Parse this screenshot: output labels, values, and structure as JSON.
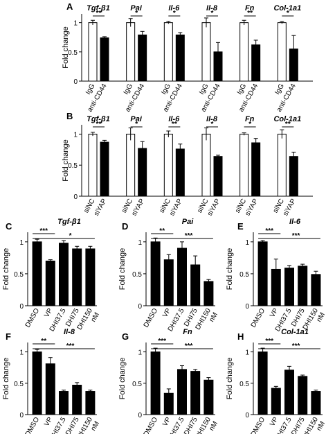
{
  "chart_data": [
    {
      "id": "A",
      "type": "bar",
      "ylabel": "Fold change",
      "yticks": [
        "0",
        "0.5",
        "1"
      ],
      "ylim": [
        0,
        1.15
      ],
      "groups": [
        {
          "gene": "Tgf-β1",
          "sig": "**",
          "labels": [
            "IgG",
            "anti-CD44"
          ],
          "values": [
            1.0,
            0.74
          ],
          "errors": [
            0.04,
            0.02
          ]
        },
        {
          "gene": "Pai",
          "sig": "*",
          "labels": [
            "IgG",
            "anti-CD44"
          ],
          "values": [
            1.0,
            0.79
          ],
          "errors": [
            0.07,
            0.06
          ]
        },
        {
          "gene": "Il-6",
          "sig": "*",
          "labels": [
            "IgG",
            "anti-CD44"
          ],
          "values": [
            1.0,
            0.79
          ],
          "errors": [
            0.02,
            0.04
          ]
        },
        {
          "gene": "Il-8",
          "sig": "*",
          "labels": [
            "IgG",
            "anti-CD44"
          ],
          "values": [
            1.0,
            0.5
          ],
          "errors": [
            0.08,
            0.16
          ]
        },
        {
          "gene": "Fn",
          "sig": "**",
          "labels": [
            "IgG",
            "anti-CD44"
          ],
          "values": [
            1.0,
            0.62
          ],
          "errors": [
            0.04,
            0.08
          ]
        },
        {
          "gene": "Col-1a1",
          "sig": "*",
          "labels": [
            "IgG",
            "anti-CD44"
          ],
          "values": [
            1.0,
            0.55
          ],
          "errors": [
            0.02,
            0.23
          ]
        }
      ]
    },
    {
      "id": "B",
      "type": "bar",
      "ylabel": "Fold change",
      "yticks": [
        "0",
        "0.5",
        "1"
      ],
      "ylim": [
        0,
        1.15
      ],
      "groups": [
        {
          "gene": "Tgf-β1",
          "sig": "**",
          "labels": [
            "siNC",
            "siYAP"
          ],
          "values": [
            1.0,
            0.87
          ],
          "errors": [
            0.03,
            0.03
          ]
        },
        {
          "gene": "Pai",
          "sig": "*",
          "labels": [
            "siNC",
            "siYAP"
          ],
          "values": [
            1.0,
            0.77
          ],
          "errors": [
            0.1,
            0.11
          ]
        },
        {
          "gene": "Il-6",
          "sig": "**",
          "labels": [
            "siNC",
            "siYAP"
          ],
          "values": [
            1.0,
            0.76
          ],
          "errors": [
            0.05,
            0.08
          ]
        },
        {
          "gene": "Il-8",
          "sig": "*",
          "labels": [
            "siNC",
            "siYAP"
          ],
          "values": [
            1.0,
            0.64
          ],
          "errors": [
            0.1,
            0.02
          ]
        },
        {
          "gene": "Fn",
          "sig": "*",
          "labels": [
            "siNC",
            "siYAP"
          ],
          "values": [
            1.0,
            0.86
          ],
          "errors": [
            0.02,
            0.07
          ]
        },
        {
          "gene": "Col-1a1",
          "sig": "**",
          "labels": [
            "siNC",
            "siYAP"
          ],
          "values": [
            1.0,
            0.64
          ],
          "errors": [
            0.07,
            0.07
          ]
        }
      ]
    },
    {
      "id": "C",
      "type": "bar",
      "gene": "Tgf-β1",
      "ylabel": "Fold change",
      "yticks": [
        "0",
        "0.5",
        "1"
      ],
      "ylim": [
        0,
        1.15
      ],
      "categories": [
        "DMSO",
        "VP",
        "DHI37.5",
        "DHI75",
        "DHI150"
      ],
      "unit": "nM",
      "values": [
        1.0,
        0.7,
        0.98,
        0.89,
        0.89
      ],
      "errors": [
        0.04,
        0.02,
        0.04,
        0.04,
        0.04
      ],
      "sig": [
        {
          "from": 0,
          "to": 1,
          "label": "***"
        },
        {
          "from": 0,
          "to": 4,
          "label": "*"
        }
      ]
    },
    {
      "id": "D",
      "type": "bar",
      "gene": "Pai",
      "ylabel": "Fold change",
      "yticks": [
        "0",
        "0.5",
        "1"
      ],
      "ylim": [
        0,
        1.15
      ],
      "categories": [
        "DMSO",
        "VP",
        "DHI37.5",
        "DHI75",
        "DHI150"
      ],
      "unit": "nM",
      "values": [
        1.0,
        0.72,
        0.9,
        0.64,
        0.38
      ],
      "errors": [
        0.06,
        0.08,
        0.1,
        0.14,
        0.03
      ],
      "sig": [
        {
          "from": 0,
          "to": 1,
          "label": "**"
        },
        {
          "from": 0,
          "to": 4,
          "label": "***"
        }
      ]
    },
    {
      "id": "E",
      "type": "bar",
      "gene": "Il-6",
      "ylabel": "Fold change",
      "yticks": [
        "0",
        "0.5",
        "1"
      ],
      "ylim": [
        0,
        1.15
      ],
      "categories": [
        "DMSO",
        "VP",
        "DHI37.5",
        "DHI75",
        "DHI150"
      ],
      "unit": "nM",
      "values": [
        1.0,
        0.57,
        0.59,
        0.62,
        0.49
      ],
      "errors": [
        0.02,
        0.16,
        0.04,
        0.03,
        0.05
      ],
      "sig": [
        {
          "from": 0,
          "to": 1,
          "label": "***"
        },
        {
          "from": 0,
          "to": 4,
          "label": "***"
        }
      ]
    },
    {
      "id": "F",
      "type": "bar",
      "gene": "Il-8",
      "ylabel": "Fold change",
      "yticks": [
        "0",
        "0.5",
        "1"
      ],
      "ylim": [
        0,
        1.15
      ],
      "categories": [
        "DMSO",
        "VP",
        "DHI37.5",
        "DHI75",
        "DHI150"
      ],
      "unit": "nM",
      "values": [
        1.0,
        0.81,
        0.37,
        0.47,
        0.37
      ],
      "errors": [
        0.04,
        0.1,
        0.02,
        0.04,
        0.02
      ],
      "sig": [
        {
          "from": 0,
          "to": 1,
          "label": "**"
        },
        {
          "from": 0,
          "to": 4,
          "label": "***"
        }
      ]
    },
    {
      "id": "G",
      "type": "bar",
      "gene": "Fn",
      "ylabel": "Fold change",
      "yticks": [
        "0",
        "0.5",
        "1"
      ],
      "ylim": [
        0,
        1.15
      ],
      "categories": [
        "DMSO",
        "VP",
        "DHI37.5",
        "DHI75",
        "DHI150"
      ],
      "unit": "nM",
      "values": [
        1.0,
        0.34,
        0.72,
        0.69,
        0.55
      ],
      "errors": [
        0.06,
        0.07,
        0.06,
        0.03,
        0.04
      ],
      "sig": [
        {
          "from": 0,
          "to": 1,
          "label": "***"
        },
        {
          "from": 0,
          "to": 4,
          "label": "***"
        }
      ]
    },
    {
      "id": "H",
      "type": "bar",
      "gene": "Col-1a1",
      "ylabel": "Fold change",
      "yticks": [
        "0",
        "0.5",
        "1"
      ],
      "ylim": [
        0,
        1.15
      ],
      "categories": [
        "DMSO",
        "VP",
        "DHI37.5",
        "DHI75",
        "DHI150"
      ],
      "unit": "nM",
      "values": [
        1.0,
        0.42,
        0.71,
        0.61,
        0.37
      ],
      "errors": [
        0.06,
        0.03,
        0.06,
        0.02,
        0.02
      ],
      "sig": [
        {
          "from": 0,
          "to": 1,
          "label": "***"
        },
        {
          "from": 0,
          "to": 4,
          "label": "***"
        }
      ]
    }
  ],
  "colors": {
    "control": "#ffffff",
    "treated": "#000000",
    "stroke": "#000000"
  }
}
